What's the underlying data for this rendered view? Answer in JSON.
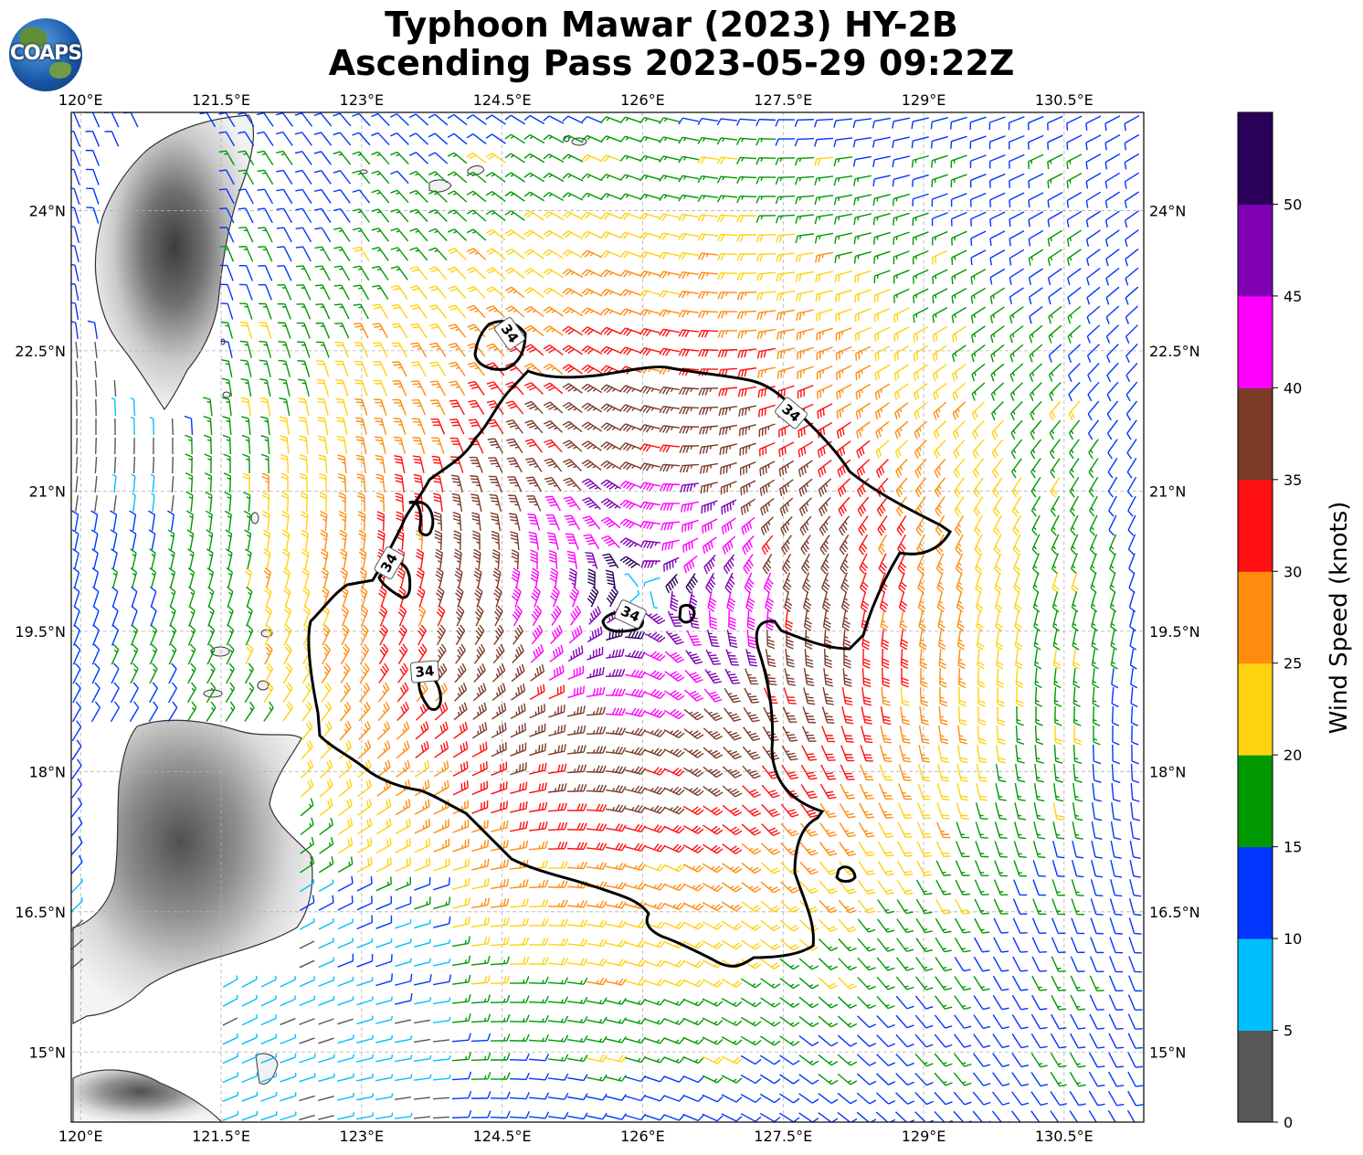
{
  "title_line1": "Typhoon Mawar (2023) HY-2B",
  "title_line2": "Ascending Pass 2023-05-29 09:22Z",
  "logo_text": "COAPS",
  "map": {
    "lon_ticks": [
      "120°E",
      "121.5°E",
      "123°E",
      "124.5°E",
      "126°E",
      "127.5°E",
      "129°E",
      "130.5°E"
    ],
    "lat_ticks": [
      "24°N",
      "22.5°N",
      "21°N",
      "19.5°N",
      "18°N",
      "16.5°N",
      "15°N"
    ],
    "lon_range": [
      119.9,
      131.35
    ],
    "lat_range": [
      14.25,
      25.05
    ],
    "storm_center": {
      "lon": 126.0,
      "lat": 19.9
    },
    "contour_label": "34",
    "contour_label_count": 5,
    "grid": true,
    "land_colors": {
      "coast": "#333333",
      "low": "#f4f4f4",
      "high": "#555555"
    }
  },
  "colorbar": {
    "title": "Wind Speed (knots)",
    "tick_labels": [
      "0",
      "5",
      "10",
      "15",
      "20",
      "25",
      "30",
      "35",
      "40",
      "45",
      "50"
    ],
    "bins": [
      {
        "min": 0,
        "max": 5,
        "color": "#575757"
      },
      {
        "min": 5,
        "max": 10,
        "color": "#00bfff"
      },
      {
        "min": 10,
        "max": 15,
        "color": "#0036ff"
      },
      {
        "min": 15,
        "max": 20,
        "color": "#009900"
      },
      {
        "min": 20,
        "max": 25,
        "color": "#ffd20f"
      },
      {
        "min": 25,
        "max": 30,
        "color": "#ff8c0f"
      },
      {
        "min": 30,
        "max": 35,
        "color": "#ff0f0f"
      },
      {
        "min": 35,
        "max": 40,
        "color": "#7c3b28"
      },
      {
        "min": 40,
        "max": 45,
        "color": "#ff00ff"
      },
      {
        "min": 45,
        "max": 50,
        "color": "#8000b3"
      },
      {
        "min": 50,
        "max": 55,
        "color": "#2a0059"
      }
    ]
  }
}
